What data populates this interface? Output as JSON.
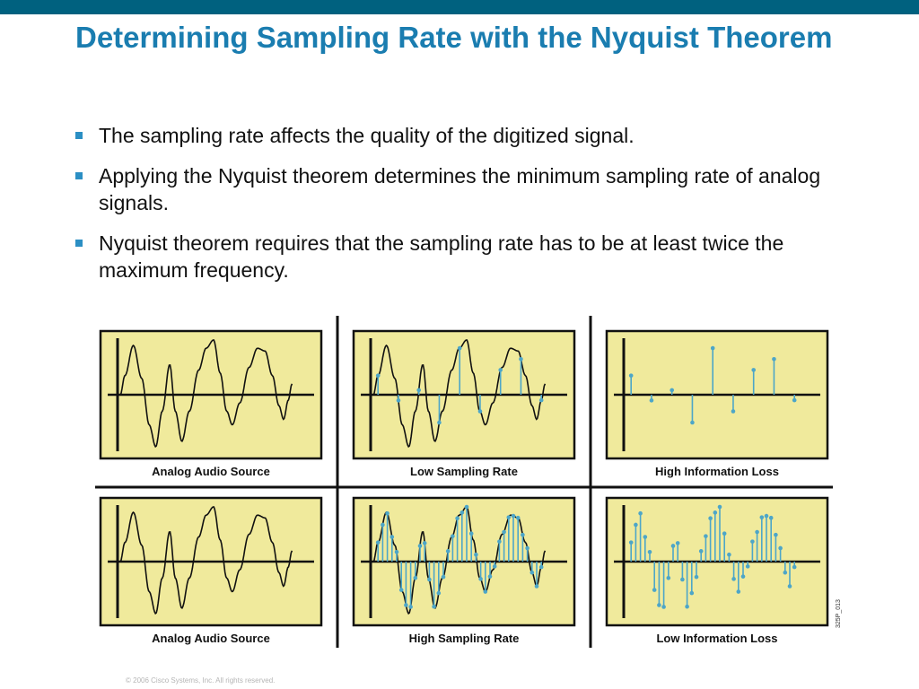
{
  "slide": {
    "title": "Determining Sampling Rate with the Nyquist Theorem",
    "bullets": [
      "The sampling rate affects the quality of the digitized signal.",
      "Applying the Nyquist theorem determines the minimum sampling rate of analog signals.",
      "Nyquist theorem requires that the sampling rate has to be at least twice the maximum frequency."
    ],
    "footer": "© 2006 Cisco Systems, Inc. All rights reserved."
  },
  "figure": {
    "id_label": "325P_013",
    "colors": {
      "panel_fill": "#f0ea9c",
      "line": "#111111",
      "sample": "#4da6c8"
    },
    "panels": [
      {
        "caption": "Analog Audio Source",
        "show_wave": true,
        "samples": 0
      },
      {
        "caption": "Low Sampling Rate",
        "show_wave": true,
        "samples": 9
      },
      {
        "caption": "High Information Loss",
        "show_wave": false,
        "samples": 9
      },
      {
        "caption": "Analog Audio Source",
        "show_wave": true,
        "samples": 0
      },
      {
        "caption": "High Sampling Rate",
        "show_wave": true,
        "samples": 36
      },
      {
        "caption": "Low Information Loss",
        "show_wave": false,
        "samples": 36
      }
    ]
  }
}
